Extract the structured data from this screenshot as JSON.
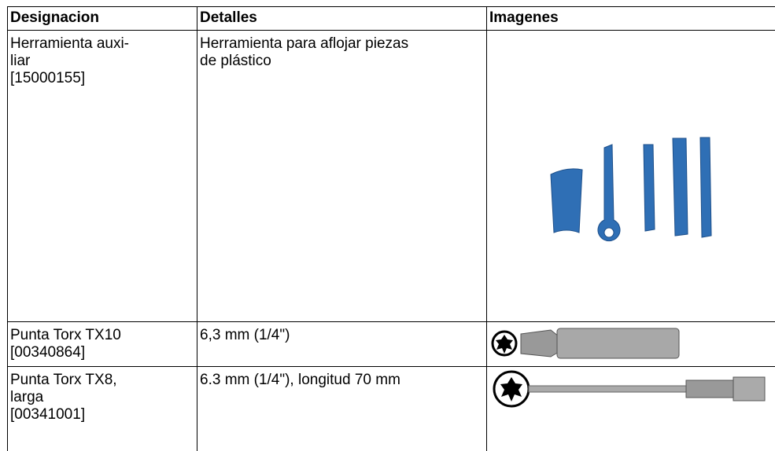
{
  "table": {
    "header": [
      "Designacion",
      "Detalles",
      "Imagenes"
    ],
    "rows": [
      {
        "designation": [
          "Herramienta auxi-",
          "liar",
          "[15000155]"
        ],
        "details": [
          "Herramienta para aflojar piezas",
          "de plástico"
        ]
      },
      {
        "designation": [
          "Punta Torx TX10",
          "[00340864]"
        ],
        "details": [
          "6,3 mm (1/4\")"
        ]
      },
      {
        "designation": [
          "Punta Torx TX8,",
          "larga",
          "[00341001]"
        ],
        "details": [
          "6.3 mm (1/4\"), longitud 70 mm"
        ]
      }
    ]
  }
}
